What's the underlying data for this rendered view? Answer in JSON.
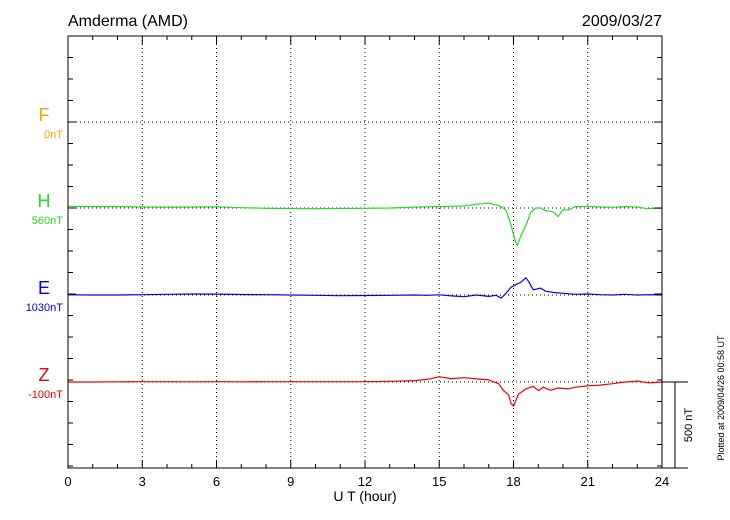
{
  "header": {
    "station": "Amderma (AMD)",
    "date": "2009/03/27"
  },
  "footer": {
    "plotted_note": "Plotted at 2009/04/26 00:58 UT"
  },
  "chart_data": {
    "type": "line",
    "xlabel": "U T (hour)",
    "xlim": [
      0,
      24
    ],
    "xticks": [
      "0",
      "3",
      "6",
      "9",
      "12",
      "15",
      "18",
      "21",
      "24"
    ],
    "grid": true,
    "scale_bar": {
      "label": "500 nT",
      "value": 500
    },
    "series": [
      {
        "name": "F",
        "base_label": "0nT",
        "color": "#f5a500",
        "baseline_nT": 0,
        "data": []
      },
      {
        "name": "H",
        "base_label": "560nT",
        "color": "#22dd22",
        "baseline_nT": 560,
        "data": [
          [
            0,
            570
          ],
          [
            1,
            568
          ],
          [
            2,
            568
          ],
          [
            3,
            566
          ],
          [
            4,
            565
          ],
          [
            5,
            566
          ],
          [
            6,
            567
          ],
          [
            7,
            562
          ],
          [
            8,
            558
          ],
          [
            9,
            557
          ],
          [
            10,
            556
          ],
          [
            11,
            557
          ],
          [
            12,
            558
          ],
          [
            13,
            560
          ],
          [
            14,
            565
          ],
          [
            14.5,
            567
          ],
          [
            15,
            569
          ],
          [
            15.5,
            570
          ],
          [
            16,
            572
          ],
          [
            16.5,
            582
          ],
          [
            17,
            588
          ],
          [
            17.3,
            578
          ],
          [
            17.5,
            568
          ],
          [
            17.7,
            548
          ],
          [
            17.9,
            462
          ],
          [
            18.05,
            380
          ],
          [
            18.15,
            340
          ],
          [
            18.3,
            398
          ],
          [
            18.5,
            458
          ],
          [
            18.7,
            535
          ],
          [
            18.9,
            560
          ],
          [
            19.1,
            560
          ],
          [
            19.3,
            545
          ],
          [
            19.6,
            538
          ],
          [
            19.8,
            510
          ],
          [
            20,
            550
          ],
          [
            20.2,
            548
          ],
          [
            20.5,
            568
          ],
          [
            21,
            570
          ],
          [
            21.5,
            566
          ],
          [
            22,
            564
          ],
          [
            22.5,
            568
          ],
          [
            23,
            566
          ],
          [
            23.4,
            556
          ],
          [
            23.7,
            558
          ],
          [
            24,
            558
          ]
        ]
      },
      {
        "name": "E",
        "base_label": "1030nT",
        "color": "#0000ee",
        "baseline_nT": 1030,
        "data": [
          [
            0,
            1031
          ],
          [
            1,
            1030
          ],
          [
            2,
            1030
          ],
          [
            3,
            1032
          ],
          [
            4,
            1034
          ],
          [
            5,
            1036
          ],
          [
            6,
            1035
          ],
          [
            7,
            1033
          ],
          [
            8,
            1032
          ],
          [
            9,
            1030
          ],
          [
            10,
            1028
          ],
          [
            11,
            1026
          ],
          [
            12,
            1027
          ],
          [
            13,
            1028
          ],
          [
            14,
            1030
          ],
          [
            14.5,
            1028
          ],
          [
            15,
            1031
          ],
          [
            15.5,
            1025
          ],
          [
            16,
            1020
          ],
          [
            16.5,
            1030
          ],
          [
            17,
            1022
          ],
          [
            17.3,
            1028
          ],
          [
            17.5,
            1012
          ],
          [
            17.7,
            1040
          ],
          [
            17.9,
            1075
          ],
          [
            18.1,
            1090
          ],
          [
            18.3,
            1105
          ],
          [
            18.5,
            1130
          ],
          [
            18.6,
            1110
          ],
          [
            18.8,
            1060
          ],
          [
            19.1,
            1070
          ],
          [
            19.3,
            1052
          ],
          [
            19.6,
            1045
          ],
          [
            20,
            1040
          ],
          [
            20.5,
            1034
          ],
          [
            21,
            1036
          ],
          [
            21.5,
            1032
          ],
          [
            22,
            1030
          ],
          [
            22.5,
            1034
          ],
          [
            23,
            1030
          ],
          [
            23.5,
            1032
          ],
          [
            24,
            1030
          ]
        ]
      },
      {
        "name": "Z",
        "base_label": "-100nT",
        "color": "#ee0000",
        "baseline_nT": -100,
        "data": [
          [
            0,
            -100
          ],
          [
            1,
            -100
          ],
          [
            2,
            -99
          ],
          [
            3,
            -98
          ],
          [
            4,
            -98
          ],
          [
            5,
            -99
          ],
          [
            6,
            -98
          ],
          [
            7,
            -99
          ],
          [
            8,
            -98
          ],
          [
            9,
            -98
          ],
          [
            10,
            -98
          ],
          [
            11,
            -98
          ],
          [
            12,
            -98
          ],
          [
            13,
            -96
          ],
          [
            14,
            -92
          ],
          [
            14.5,
            -85
          ],
          [
            15,
            -70
          ],
          [
            15.5,
            -80
          ],
          [
            16,
            -75
          ],
          [
            16.5,
            -82
          ],
          [
            17,
            -88
          ],
          [
            17.4,
            -110
          ],
          [
            17.6,
            -150
          ],
          [
            17.8,
            -175
          ],
          [
            17.9,
            -225
          ],
          [
            18,
            -240
          ],
          [
            18.1,
            -205
          ],
          [
            18.2,
            -170
          ],
          [
            18.5,
            -140
          ],
          [
            18.8,
            -125
          ],
          [
            19,
            -150
          ],
          [
            19.2,
            -130
          ],
          [
            19.5,
            -148
          ],
          [
            19.8,
            -135
          ],
          [
            20.2,
            -140
          ],
          [
            20.5,
            -130
          ],
          [
            21,
            -122
          ],
          [
            21.5,
            -118
          ],
          [
            22,
            -110
          ],
          [
            22.5,
            -100
          ],
          [
            23,
            -95
          ],
          [
            23.5,
            -105
          ],
          [
            24,
            -100
          ]
        ]
      }
    ]
  }
}
